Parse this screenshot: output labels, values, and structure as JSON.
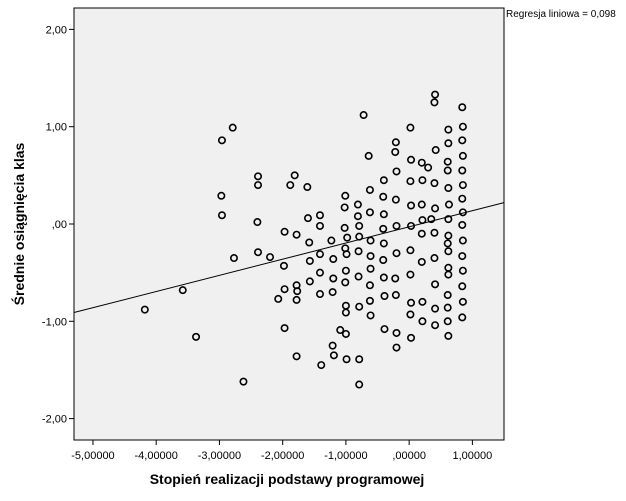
{
  "chart_data": {
    "type": "scatter",
    "xlabel": "Stopień realizacji podstawy programowej",
    "ylabel": "Średnie osiągnięcia klas",
    "annotation": "Regresja liniowa = 0,098",
    "xlim": [
      -5.3,
      1.5
    ],
    "ylim": [
      -2.22,
      2.22
    ],
    "x_ticks": [
      {
        "value": -5,
        "label": "-5,00000"
      },
      {
        "value": -4,
        "label": "-4,00000"
      },
      {
        "value": -3,
        "label": "-3,00000"
      },
      {
        "value": -2,
        "label": "-2,00000"
      },
      {
        "value": -1,
        "label": "-1,00000"
      },
      {
        "value": 0,
        "label": ",00000"
      },
      {
        "value": 1,
        "label": "1,00000"
      }
    ],
    "y_ticks": [
      {
        "value": 2,
        "label": "2,00"
      },
      {
        "value": 1,
        "label": "1,00"
      },
      {
        "value": 0,
        "label": ",00"
      },
      {
        "value": -1,
        "label": "-1,00"
      },
      {
        "value": -2,
        "label": "-2,00"
      }
    ],
    "regression_line": {
      "x0": -5.3,
      "y0": -0.91,
      "x1": 1.5,
      "y1": 0.22
    },
    "grid": false,
    "colors": {
      "plot_background": "#f0f0f0",
      "marker": "#000000",
      "line": "#000000"
    },
    "points": [
      [
        -4.18,
        -0.88
      ],
      [
        -3.58,
        -0.68
      ],
      [
        -3.37,
        -1.16
      ],
      [
        -2.96,
        0.86
      ],
      [
        -2.97,
        0.29
      ],
      [
        -2.96,
        0.09
      ],
      [
        -2.79,
        0.99
      ],
      [
        -2.77,
        -0.35
      ],
      [
        -2.62,
        -1.62
      ],
      [
        -2.39,
        0.49
      ],
      [
        -2.39,
        0.4
      ],
      [
        -2.4,
        0.02
      ],
      [
        -2.39,
        -0.29
      ],
      [
        -2.2,
        -0.34
      ],
      [
        -2.07,
        -0.77
      ],
      [
        -1.97,
        -0.08
      ],
      [
        -1.98,
        -0.43
      ],
      [
        -1.97,
        -0.67
      ],
      [
        -1.97,
        -1.07
      ],
      [
        -1.88,
        0.4
      ],
      [
        -1.81,
        0.5
      ],
      [
        -1.77,
        -0.69
      ],
      [
        -1.78,
        -0.11
      ],
      [
        -1.78,
        -0.63
      ],
      [
        -1.78,
        -0.78
      ],
      [
        -1.78,
        -1.36
      ],
      [
        -1.61,
        0.38
      ],
      [
        -1.6,
        0.06
      ],
      [
        -1.58,
        -0.19
      ],
      [
        -1.57,
        -0.38
      ],
      [
        -1.57,
        -0.59
      ],
      [
        -1.41,
        0.09
      ],
      [
        -1.41,
        -0.02
      ],
      [
        -1.41,
        -0.31
      ],
      [
        -1.41,
        -0.5
      ],
      [
        -1.41,
        -0.72
      ],
      [
        -1.39,
        -1.45
      ],
      [
        -1.23,
        -0.17
      ],
      [
        -1.2,
        -0.36
      ],
      [
        -1.2,
        -0.56
      ],
      [
        -1.21,
        -0.7
      ],
      [
        -1.21,
        -1.25
      ],
      [
        -1.19,
        -1.35
      ],
      [
        -1.09,
        -1.09
      ],
      [
        -1.01,
        0.29
      ],
      [
        -1.02,
        0.17
      ],
      [
        -1.02,
        -0.04
      ],
      [
        -0.98,
        -0.14
      ],
      [
        -1.01,
        -0.25
      ],
      [
        -0.99,
        -0.31
      ],
      [
        -1.0,
        -0.48
      ],
      [
        -1.01,
        -0.6
      ],
      [
        -1.0,
        -0.84
      ],
      [
        -1.0,
        -0.91
      ],
      [
        -1.0,
        -1.13
      ],
      [
        -0.99,
        -1.39
      ],
      [
        -0.81,
        0.2
      ],
      [
        -0.81,
        0.08
      ],
      [
        -0.79,
        -0.02
      ],
      [
        -0.79,
        -0.13
      ],
      [
        -0.8,
        -0.28
      ],
      [
        -0.8,
        -0.54
      ],
      [
        -0.79,
        -0.85
      ],
      [
        -0.79,
        -1.39
      ],
      [
        -0.79,
        -1.65
      ],
      [
        -0.72,
        1.12
      ],
      [
        -0.64,
        0.7
      ],
      [
        -0.62,
        0.35
      ],
      [
        -0.62,
        0.12
      ],
      [
        -0.61,
        -0.17
      ],
      [
        -0.61,
        -0.33
      ],
      [
        -0.61,
        -0.46
      ],
      [
        -0.62,
        -0.63
      ],
      [
        -0.62,
        -0.79
      ],
      [
        -0.61,
        -0.94
      ],
      [
        -0.4,
        0.45
      ],
      [
        -0.41,
        0.28
      ],
      [
        -0.4,
        0.1
      ],
      [
        -0.41,
        -0.05
      ],
      [
        -0.4,
        -0.2
      ],
      [
        -0.41,
        -0.37
      ],
      [
        -0.4,
        -0.55
      ],
      [
        -0.39,
        -0.74
      ],
      [
        -0.39,
        -1.08
      ],
      [
        -0.21,
        0.84
      ],
      [
        -0.22,
        0.74
      ],
      [
        -0.2,
        0.54
      ],
      [
        -0.21,
        0.25
      ],
      [
        -0.2,
        -0.02
      ],
      [
        -0.2,
        -0.3
      ],
      [
        -0.22,
        -0.56
      ],
      [
        -0.21,
        -0.73
      ],
      [
        -0.2,
        -1.12
      ],
      [
        -0.2,
        -1.27
      ],
      [
        0.02,
        0.99
      ],
      [
        0.03,
        0.66
      ],
      [
        0.02,
        0.44
      ],
      [
        0.03,
        0.19
      ],
      [
        0.03,
        -0.02
      ],
      [
        0.02,
        -0.27
      ],
      [
        0.02,
        -0.52
      ],
      [
        0.03,
        -0.81
      ],
      [
        0.02,
        -0.93
      ],
      [
        0.03,
        -1.17
      ],
      [
        0.2,
        0.63
      ],
      [
        0.21,
        0.45
      ],
      [
        0.2,
        0.2
      ],
      [
        0.21,
        0.04
      ],
      [
        0.2,
        -0.1
      ],
      [
        0.2,
        -0.39
      ],
      [
        0.21,
        -0.8
      ],
      [
        0.21,
        -1.0
      ],
      [
        0.3,
        0.58
      ],
      [
        0.35,
        0.05
      ],
      [
        0.41,
        1.33
      ],
      [
        0.4,
        1.25
      ],
      [
        0.42,
        0.76
      ],
      [
        0.4,
        0.42
      ],
      [
        0.41,
        0.16
      ],
      [
        0.4,
        -0.09
      ],
      [
        0.4,
        -0.35
      ],
      [
        0.41,
        -0.62
      ],
      [
        0.41,
        -0.87
      ],
      [
        0.41,
        -1.04
      ],
      [
        0.62,
        0.97
      ],
      [
        0.62,
        0.83
      ],
      [
        0.61,
        0.64
      ],
      [
        0.61,
        0.55
      ],
      [
        0.62,
        0.37
      ],
      [
        0.63,
        0.2
      ],
      [
        0.62,
        0.05
      ],
      [
        0.62,
        -0.12
      ],
      [
        0.61,
        -0.2
      ],
      [
        0.62,
        -0.28
      ],
      [
        0.62,
        -0.45
      ],
      [
        0.62,
        -0.52
      ],
      [
        0.61,
        -0.73
      ],
      [
        0.61,
        -0.86
      ],
      [
        0.61,
        -1.0
      ],
      [
        0.62,
        -1.15
      ],
      [
        0.84,
        1.2
      ],
      [
        0.85,
        1.0
      ],
      [
        0.84,
        0.86
      ],
      [
        0.85,
        0.7
      ],
      [
        0.84,
        0.55
      ],
      [
        0.85,
        0.4
      ],
      [
        0.84,
        0.26
      ],
      [
        0.85,
        0.12
      ],
      [
        0.84,
        -0.01
      ],
      [
        0.85,
        -0.17
      ],
      [
        0.84,
        -0.33
      ],
      [
        0.85,
        -0.48
      ],
      [
        0.84,
        -0.64
      ],
      [
        0.85,
        -0.8
      ],
      [
        0.84,
        -0.96
      ]
    ]
  }
}
